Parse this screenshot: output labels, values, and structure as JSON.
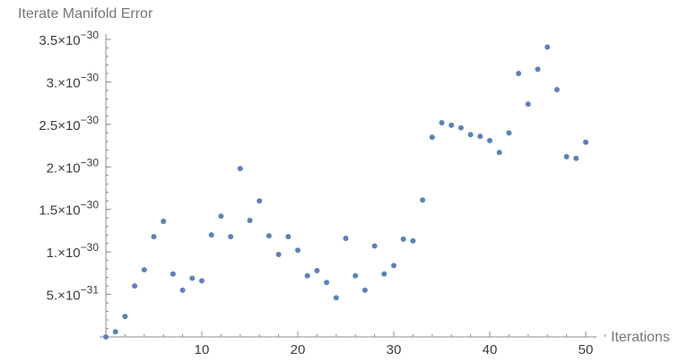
{
  "chart_data": {
    "type": "scatter",
    "title": "",
    "xlabel": "Iterations",
    "ylabel": "Iterate Manifold Error",
    "xlim": [
      0,
      52
    ],
    "ylim": [
      0,
      3.6e-30
    ],
    "x_ticks": [
      10,
      20,
      30,
      40,
      50
    ],
    "y_ticks": [
      {
        "value": 5e-31,
        "mantissa": "5.",
        "exponent": "−31"
      },
      {
        "value": 1e-30,
        "mantissa": "1.",
        "exponent": "−30"
      },
      {
        "value": 1.5e-30,
        "mantissa": "1.5",
        "exponent": "−30"
      },
      {
        "value": 2e-30,
        "mantissa": "2.",
        "exponent": "−30"
      },
      {
        "value": 2.5e-30,
        "mantissa": "2.5",
        "exponent": "−30"
      },
      {
        "value": 3e-30,
        "mantissa": "3.",
        "exponent": "−30"
      },
      {
        "value": 3.5e-30,
        "mantissa": "3.5",
        "exponent": "−30"
      }
    ],
    "point_color": "#5e81b5",
    "x": [
      0,
      1,
      2,
      3,
      4,
      5,
      6,
      7,
      8,
      9,
      10,
      11,
      12,
      13,
      14,
      15,
      16,
      17,
      18,
      19,
      20,
      21,
      22,
      23,
      24,
      25,
      26,
      27,
      28,
      29,
      30,
      31,
      32,
      33,
      34,
      35,
      36,
      37,
      38,
      39,
      40,
      41,
      42,
      43,
      44,
      45,
      46,
      47,
      48,
      49,
      50
    ],
    "y": [
      0,
      6e-32,
      2.4e-31,
      6e-31,
      7.9e-31,
      1.18e-30,
      1.36e-30,
      7.4e-31,
      5.5e-31,
      6.9e-31,
      6.6e-31,
      1.2e-30,
      1.42e-30,
      1.18e-30,
      1.98e-30,
      1.37e-30,
      1.6e-30,
      1.19e-30,
      9.7e-31,
      1.18e-30,
      1.02e-30,
      7.2e-31,
      7.8e-31,
      6.4e-31,
      4.6e-31,
      1.16e-30,
      7.2e-31,
      5.5e-31,
      1.07e-30,
      7.4e-31,
      8.4e-31,
      1.15e-30,
      1.13e-30,
      1.61e-30,
      2.35e-30,
      2.52e-30,
      2.49e-30,
      2.46e-30,
      2.38e-30,
      2.36e-30,
      2.31e-30,
      2.17e-30,
      2.4e-30,
      3.1e-30,
      2.74e-30,
      3.15e-30,
      3.41e-30,
      2.91e-30,
      2.12e-30,
      2.1e-30,
      2.29e-30
    ]
  }
}
